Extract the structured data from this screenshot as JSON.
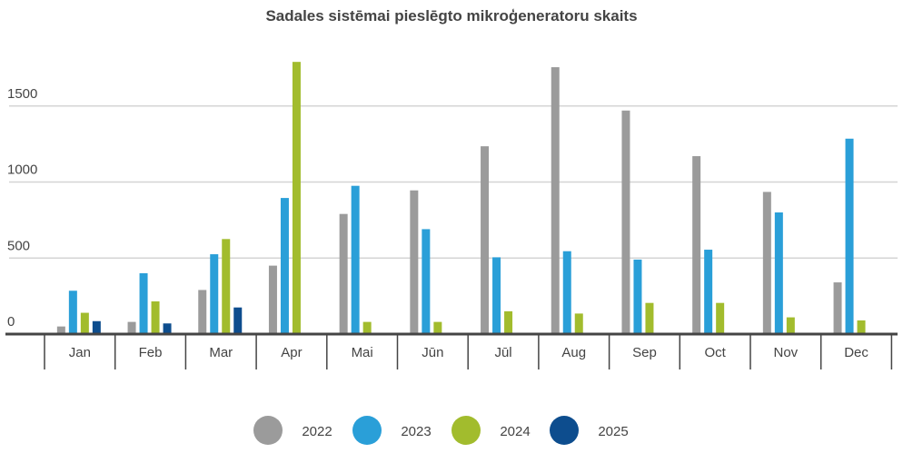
{
  "chart_data": {
    "type": "bar",
    "title": "Sadales sistēmai pieslēgto mikroģeneratoru skaits",
    "categories": [
      "Jan",
      "Feb",
      "Mar",
      "Apr",
      "Mai",
      "Jūn",
      "Jūl",
      "Aug",
      "Sep",
      "Oct",
      "Nov",
      "Dec"
    ],
    "series": [
      {
        "name": "2022",
        "color": "#9b9b9b",
        "values": [
          50,
          80,
          290,
          450,
          790,
          945,
          1235,
          1755,
          1470,
          1170,
          935,
          340
        ]
      },
      {
        "name": "2023",
        "color": "#2a9fd8",
        "values": [
          285,
          400,
          525,
          895,
          975,
          690,
          505,
          545,
          490,
          555,
          800,
          1285
        ]
      },
      {
        "name": "2024",
        "color": "#a2bc2d",
        "values": [
          140,
          215,
          625,
          1790,
          80,
          80,
          150,
          135,
          205,
          205,
          110,
          90
        ]
      },
      {
        "name": "2025",
        "color": "#0d4d8e",
        "values": [
          85,
          70,
          175,
          null,
          null,
          null,
          null,
          null,
          null,
          null,
          null,
          null
        ]
      }
    ],
    "yticks": [
      0,
      500,
      1000,
      1500
    ],
    "ylim": [
      0,
      1800
    ],
    "grid": true,
    "legend_position": "bottom"
  }
}
